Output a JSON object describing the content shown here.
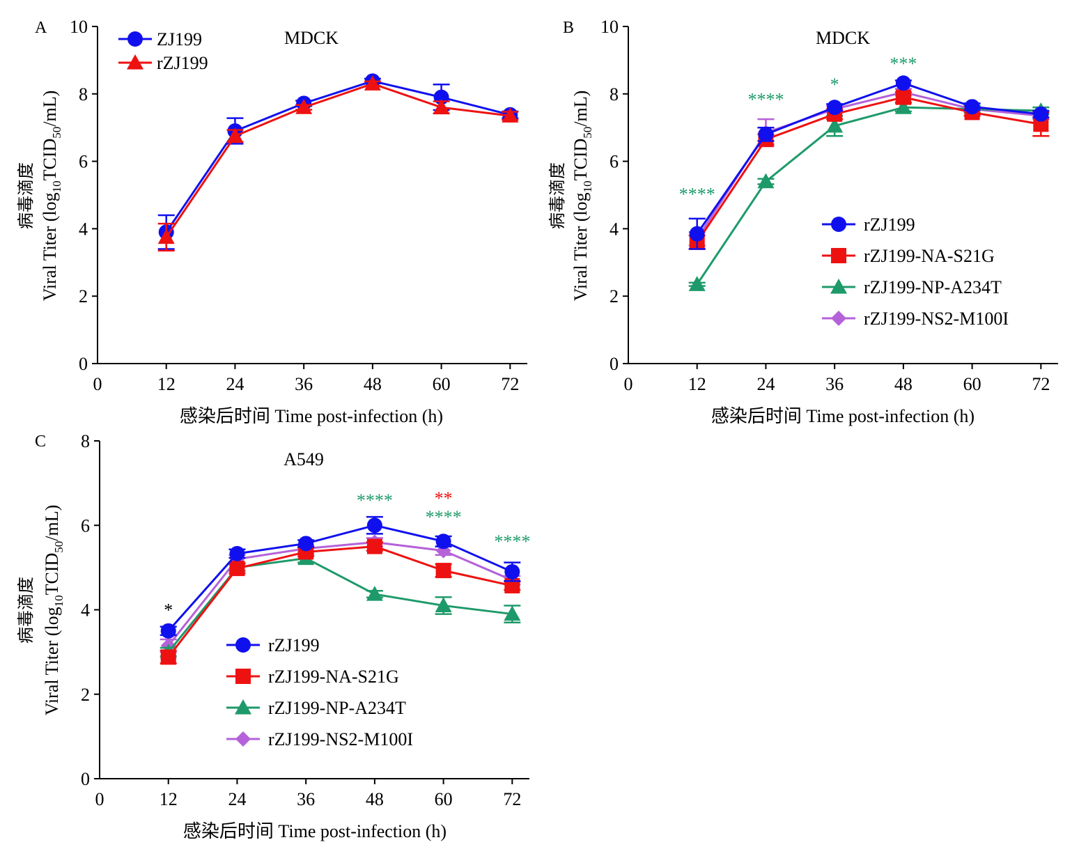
{
  "colors": {
    "rZJ199": "#1010ee",
    "NA": "#ee1111",
    "NP": "#1e9a6a",
    "NS2": "#b561d9",
    "axis": "#000000"
  },
  "shared": {
    "ylabel_cn": "病毒滴度",
    "ylabel_en_pre": "Viral Titer (log",
    "ylabel_sub1": "10",
    "ylabel_mid": "TCID",
    "ylabel_sub2": "50",
    "ylabel_post": "/mL)",
    "xlabel": "感染后时间 Time post-infection (h)"
  },
  "chart_data": [
    {
      "id": "A",
      "type": "line",
      "panel_label": "A",
      "title": "MDCK",
      "x": [
        12,
        24,
        36,
        48,
        60,
        72
      ],
      "xticks": [
        0,
        12,
        24,
        36,
        48,
        60,
        72
      ],
      "xlim": [
        0,
        75
      ],
      "ylim": [
        0,
        10
      ],
      "yticks": [
        0,
        2,
        4,
        6,
        8,
        10
      ],
      "legend_position": "top-left",
      "series": [
        {
          "name": "ZJ199",
          "marker": "circle",
          "color": "#1010ee",
          "values": [
            3.9,
            6.9,
            7.72,
            8.38,
            7.9,
            7.38
          ],
          "errors": [
            0.5,
            0.38,
            0.08,
            0.07,
            0.38,
            0.1
          ]
        },
        {
          "name": "rZJ199",
          "marker": "triangle",
          "color": "#ee1111",
          "values": [
            3.75,
            6.75,
            7.6,
            8.3,
            7.6,
            7.35
          ],
          "errors": [
            0.4,
            0.18,
            0.07,
            0.07,
            0.18,
            0.12
          ]
        }
      ],
      "annotations": []
    },
    {
      "id": "B",
      "type": "line",
      "panel_label": "B",
      "title": "MDCK",
      "x": [
        12,
        24,
        36,
        48,
        60,
        72
      ],
      "xticks": [
        0,
        12,
        24,
        36,
        48,
        60,
        72
      ],
      "xlim": [
        0,
        75
      ],
      "ylim": [
        0,
        10
      ],
      "yticks": [
        0,
        2,
        4,
        6,
        8,
        10
      ],
      "legend_position": "center-right",
      "series": [
        {
          "name": "rZJ199-NS2-M100I",
          "marker": "diamond",
          "color": "#b561d9",
          "values": [
            3.7,
            6.85,
            7.55,
            8.05,
            7.55,
            7.35
          ],
          "errors": [
            0.2,
            0.4,
            0.1,
            0.1,
            0.1,
            0.1
          ]
        },
        {
          "name": "rZJ199-NP-A234T",
          "marker": "triangle",
          "color": "#1e9a6a",
          "values": [
            2.35,
            5.4,
            7.05,
            7.6,
            7.55,
            7.5
          ],
          "errors": [
            0.05,
            0.08,
            0.3,
            0.12,
            0.1,
            0.1
          ]
        },
        {
          "name": "rZJ199-NA-S21G",
          "marker": "square",
          "color": "#ee1111",
          "values": [
            3.6,
            6.65,
            7.4,
            7.9,
            7.45,
            7.1
          ],
          "errors": [
            0.2,
            0.15,
            0.15,
            0.15,
            0.1,
            0.35
          ]
        },
        {
          "name": "rZJ199",
          "marker": "circle",
          "color": "#1010ee",
          "values": [
            3.85,
            6.8,
            7.6,
            8.32,
            7.62,
            7.4
          ],
          "errors": [
            0.45,
            0.2,
            0.1,
            0.08,
            0.1,
            0.1
          ]
        }
      ],
      "legend_order": [
        "rZJ199",
        "rZJ199-NA-S21G",
        "rZJ199-NP-A234T",
        "rZJ199-NS2-M100I"
      ],
      "annotations": [
        {
          "x": 12,
          "y": 4.85,
          "text": "****",
          "color": "#1e9a6a"
        },
        {
          "x": 24,
          "y": 7.65,
          "text": "****",
          "color": "#1e9a6a"
        },
        {
          "x": 36,
          "y": 8.1,
          "text": "*",
          "color": "#1e9a6a"
        },
        {
          "x": 48,
          "y": 8.72,
          "text": "***",
          "color": "#1e9a6a"
        }
      ]
    },
    {
      "id": "C",
      "type": "line",
      "panel_label": "C",
      "title": "A549",
      "x": [
        12,
        24,
        36,
        48,
        60,
        72
      ],
      "xticks": [
        0,
        12,
        24,
        36,
        48,
        60,
        72
      ],
      "xlim": [
        0,
        75
      ],
      "ylim": [
        0,
        8
      ],
      "yticks": [
        0,
        2,
        4,
        6,
        8
      ],
      "legend_position": "bottom-left",
      "series": [
        {
          "name": "rZJ199-NS2-M100I",
          "marker": "diamond",
          "color": "#b561d9",
          "values": [
            3.15,
            5.2,
            5.45,
            5.6,
            5.4,
            4.7
          ],
          "errors": [
            0.15,
            0.1,
            0.08,
            0.1,
            0.1,
            0.1
          ]
        },
        {
          "name": "rZJ199-NP-A234T",
          "marker": "triangle",
          "color": "#1e9a6a",
          "values": [
            3.0,
            5.0,
            5.22,
            4.37,
            4.1,
            3.9
          ],
          "errors": [
            0.1,
            0.08,
            0.1,
            0.08,
            0.2,
            0.2
          ]
        },
        {
          "name": "rZJ199-NA-S21G",
          "marker": "square",
          "color": "#ee1111",
          "values": [
            2.88,
            4.98,
            5.37,
            5.5,
            4.93,
            4.57
          ],
          "errors": [
            0.15,
            0.12,
            0.1,
            0.1,
            0.15,
            0.1
          ]
        },
        {
          "name": "rZJ199",
          "marker": "circle",
          "color": "#1010ee",
          "values": [
            3.5,
            5.33,
            5.57,
            6.0,
            5.62,
            4.9
          ],
          "errors": [
            0.1,
            0.1,
            0.08,
            0.2,
            0.12,
            0.22
          ]
        }
      ],
      "legend_order": [
        "rZJ199",
        "rZJ199-NA-S21G",
        "rZJ199-NP-A234T",
        "rZJ199-NS2-M100I"
      ],
      "annotations": [
        {
          "x": 12,
          "y": 3.85,
          "text": "*",
          "color": "#000000"
        },
        {
          "x": 48,
          "y": 6.45,
          "text": "****",
          "color": "#1e9a6a"
        },
        {
          "x": 60,
          "y": 6.5,
          "text": "**",
          "color": "#ee1111"
        },
        {
          "x": 60,
          "y": 6.05,
          "text": "****",
          "color": "#1e9a6a"
        },
        {
          "x": 72,
          "y": 5.48,
          "text": "****",
          "color": "#1e9a6a"
        }
      ]
    }
  ]
}
